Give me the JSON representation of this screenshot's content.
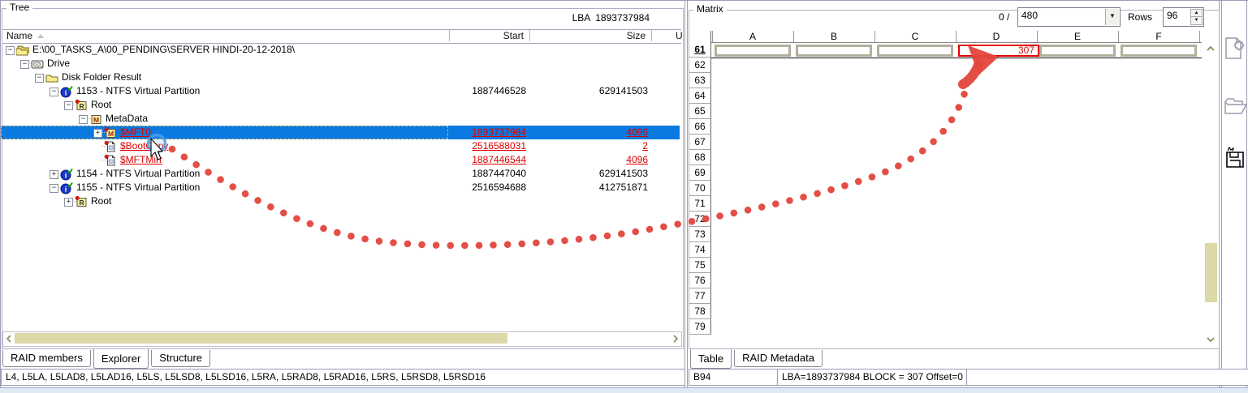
{
  "colors": {
    "selection_blue": "#0a7ae0",
    "link_red": "#dd0000",
    "annotation_red": "#e2463c",
    "khaki": "#dcd8a8",
    "cell_frame": "#b2af9b",
    "matrix_value_red": "#cc1111",
    "highlight_border_red": "#e00000",
    "olive_arrow": "#8a8a55"
  },
  "left_panel": {
    "group_label": "Tree",
    "lba_header": "LBA  1893737984",
    "columns": {
      "name": "Name",
      "start": "Start",
      "size": "Size",
      "u": "U"
    },
    "tree": [
      {
        "name": "E:\\00_TASKS_A\\00_PENDING\\SERVER HINDI-20-12-2018\\",
        "level": 0,
        "expand": "minus",
        "icon": "folders",
        "start": "",
        "size": "",
        "selected": false,
        "link": false
      },
      {
        "name": "Drive",
        "level": 1,
        "expand": "minus",
        "icon": "drive",
        "start": "",
        "size": "",
        "selected": false,
        "link": false
      },
      {
        "name": "Disk Folder Result",
        "level": 2,
        "expand": "minus",
        "icon": "folder",
        "start": "",
        "size": "",
        "selected": false,
        "link": false
      },
      {
        "name": "1153 - NTFS Virtual Partition",
        "level": 3,
        "expand": "minus",
        "icon": "info",
        "start": "1887446528",
        "size": "629141503",
        "selected": false,
        "link": false
      },
      {
        "name": "Root",
        "level": 4,
        "expand": "minus",
        "icon": "rfolder",
        "start": "",
        "size": "",
        "selected": false,
        "link": false
      },
      {
        "name": "MetaData",
        "level": 5,
        "expand": "minus",
        "icon": "mbox",
        "start": "",
        "size": "",
        "selected": false,
        "link": false
      },
      {
        "name": "$MFT0",
        "level": 6,
        "expand": "plus",
        "icon": "mboxdot",
        "start": "1893737984",
        "size": "4096",
        "selected": true,
        "link": true
      },
      {
        "name": "$BootCopy",
        "level": 6,
        "expand": "none",
        "icon": "docdot",
        "start": "2516588031",
        "size": "2",
        "selected": false,
        "link": true
      },
      {
        "name": "$MFTMirr",
        "level": 6,
        "expand": "none",
        "icon": "docdot",
        "start": "1887446544",
        "size": "4096",
        "selected": false,
        "link": true
      },
      {
        "name": "1154 - NTFS Virtual Partition",
        "level": 3,
        "expand": "plus",
        "icon": "info",
        "start": "1887447040",
        "size": "629141503",
        "selected": false,
        "link": false
      },
      {
        "name": "1155 - NTFS Virtual Partition",
        "level": 3,
        "expand": "minus",
        "icon": "info",
        "start": "2516594688",
        "size": "412751871",
        "selected": false,
        "link": false
      },
      {
        "name": "Root",
        "level": 4,
        "expand": "plus",
        "icon": "rfolder",
        "start": "",
        "size": "",
        "selected": false,
        "link": false
      }
    ],
    "tabs": [
      {
        "label": "RAID members",
        "active": false
      },
      {
        "label": "Explorer",
        "active": true
      },
      {
        "label": "Structure",
        "active": false
      }
    ],
    "status": "L4, L5LA, L5LAD8, L5LAD16, L5LS, L5LSD8, L5LSD16, L5RA, L5RAD8, L5RAD16, L5RS, L5RSD8, L5RSD16"
  },
  "right_panel": {
    "group_label": "Matrix",
    "position_label": "0 /",
    "dropdown_value": "480",
    "rows_label": "Rows",
    "rows_value": "96",
    "grid": {
      "columns": [
        "A",
        "B",
        "C",
        "D",
        "E",
        "F"
      ],
      "row_numbers": [
        "61",
        "62",
        "63",
        "64",
        "65",
        "66",
        "67",
        "68",
        "69",
        "70",
        "71",
        "72",
        "73",
        "74",
        "75",
        "76",
        "77",
        "78",
        "79"
      ],
      "selected_row": "61",
      "row61_cells": [
        {
          "col": "A",
          "value": "",
          "highlight": false
        },
        {
          "col": "B",
          "value": "",
          "highlight": false
        },
        {
          "col": "C",
          "value": "",
          "highlight": false
        },
        {
          "col": "D",
          "value": "307",
          "highlight": true
        },
        {
          "col": "E",
          "value": "",
          "highlight": false
        },
        {
          "col": "F",
          "value": "",
          "highlight": false
        }
      ]
    },
    "tabs": [
      {
        "label": "Table",
        "active": true
      },
      {
        "label": "RAID Metadata",
        "active": false
      }
    ],
    "status_cells": [
      "B94",
      "LBA=1893737984 BLOCK = 307 Offset=0",
      ""
    ]
  },
  "toolbar_icons": [
    "new-matrix-doc-icon",
    "open-folder-icon",
    "save-floppy-icon"
  ]
}
